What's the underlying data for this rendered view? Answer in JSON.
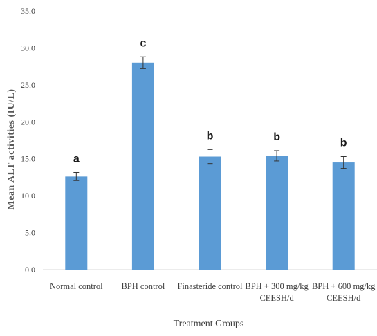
{
  "chart_data": {
    "type": "bar",
    "title": "",
    "xlabel": "Treatment Groups",
    "ylabel": "Mean ALT activities (IU/L)",
    "ylim": [
      0,
      35
    ],
    "yticks": [
      "0.0",
      "5.0",
      "10.0",
      "15.0",
      "20.0",
      "25.0",
      "30.0",
      "35.0"
    ],
    "grid": false,
    "bar_color": "#5b9bd5",
    "categories": [
      [
        "Normal control"
      ],
      [
        "BPH control"
      ],
      [
        "Finasteride control"
      ],
      [
        "BPH + 300 mg/kg",
        "CEESH/d"
      ],
      [
        "BPH + 600 mg/kg",
        "CEESH/d"
      ]
    ],
    "values": [
      12.6,
      28.0,
      15.3,
      15.4,
      14.5
    ],
    "errors": [
      0.55,
      0.8,
      0.95,
      0.7,
      0.8
    ],
    "annotations": [
      "a",
      "c",
      "b",
      "b",
      "b"
    ]
  }
}
